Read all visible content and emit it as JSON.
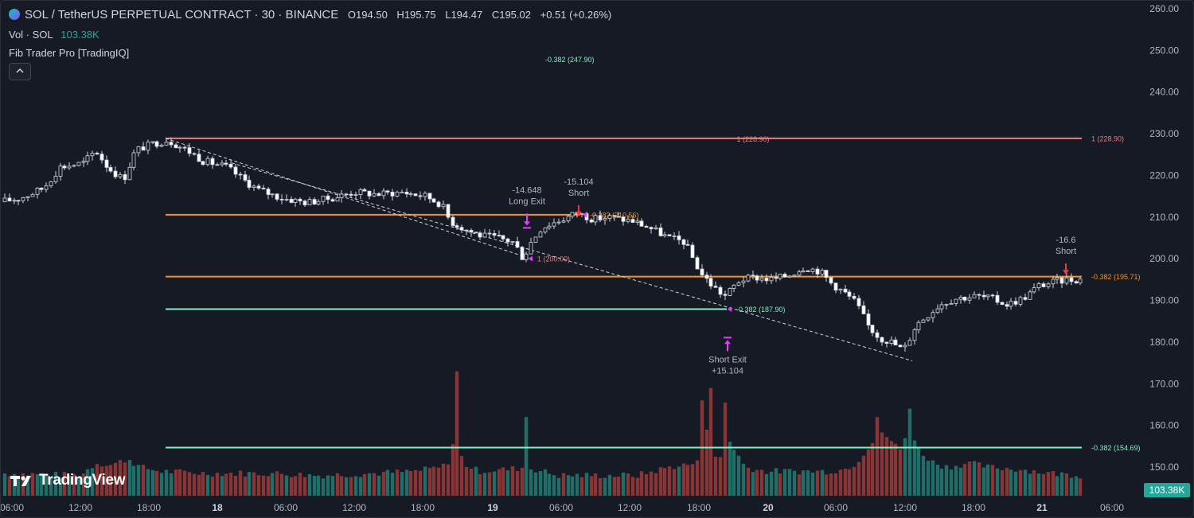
{
  "header": {
    "title": "SOL / TetherUS PERPETUAL CONTRACT · 30 · BINANCE",
    "ohlc": [
      {
        "label": "O",
        "value": "194.50"
      },
      {
        "label": "H",
        "value": "195.75"
      },
      {
        "label": "L",
        "value": "194.47"
      },
      {
        "label": "C",
        "value": "195.02"
      }
    ],
    "change": "+0.51 (+0.26%)",
    "change_color": "#d1d4dc",
    "volume_label": "Vol · SOL",
    "volume_value": "103.38K",
    "volume_color": "#26a69a",
    "indicator": "Fib Trader Pro [TradingIQ]",
    "collapse_icon": "chevron-up-icon"
  },
  "brand": {
    "name": "TradingView"
  },
  "volume_badge": "103.38K",
  "chart_data": {
    "type": "candlestick",
    "ylim": [
      144,
      261
    ],
    "y_ticks": [
      "260.00",
      "250.00",
      "240.00",
      "230.00",
      "220.00",
      "210.00",
      "200.00",
      "190.00",
      "180.00",
      "170.00",
      "160.00",
      "150.00"
    ],
    "x_ticks": [
      "06:00",
      "12:00",
      "18:00",
      "18",
      "06:00",
      "12:00",
      "18:00",
      "19",
      "06:00",
      "12:00",
      "18:00",
      "20",
      "06:00",
      "12:00",
      "18:00",
      "21",
      "06:00"
    ],
    "colors": {
      "up": "#ffffff",
      "down": "#ffffff",
      "vol_up": "#1f6f68",
      "vol_down": "#8a3535",
      "orange": "#f7931a",
      "green": "#7ef3c2",
      "red": "#f07b7b",
      "marker": "#e040fb",
      "arrow": "#f23645"
    },
    "price_path": [
      [
        0,
        213.5
      ],
      [
        30,
        214.5
      ],
      [
        60,
        217
      ],
      [
        80,
        222
      ],
      [
        110,
        223
      ],
      [
        125,
        226
      ],
      [
        140,
        222
      ],
      [
        160,
        219
      ],
      [
        175,
        226
      ],
      [
        195,
        227.5
      ],
      [
        215,
        228.5
      ],
      [
        240,
        226
      ],
      [
        260,
        223.5
      ],
      [
        290,
        222
      ],
      [
        310,
        219
      ],
      [
        330,
        216.5
      ],
      [
        360,
        214.5
      ],
      [
        390,
        213.5
      ],
      [
        420,
        214.5
      ],
      [
        450,
        216
      ],
      [
        480,
        215.5
      ],
      [
        510,
        216
      ],
      [
        540,
        215
      ],
      [
        560,
        213
      ],
      [
        570,
        209
      ],
      [
        590,
        207
      ],
      [
        610,
        205.5
      ],
      [
        630,
        205
      ],
      [
        650,
        204
      ],
      [
        662,
        200
      ],
      [
        672,
        204
      ],
      [
        685,
        207.5
      ],
      [
        705,
        209
      ],
      [
        730,
        211
      ],
      [
        750,
        209.5
      ],
      [
        770,
        210
      ],
      [
        800,
        209
      ],
      [
        820,
        207.5
      ],
      [
        845,
        205
      ],
      [
        865,
        204
      ],
      [
        885,
        196.5
      ],
      [
        900,
        193.5
      ],
      [
        915,
        191
      ],
      [
        935,
        195
      ],
      [
        955,
        195.5
      ],
      [
        975,
        195
      ],
      [
        995,
        196
      ],
      [
        1015,
        198
      ],
      [
        1035,
        197
      ],
      [
        1050,
        194
      ],
      [
        1068,
        191.5
      ],
      [
        1080,
        189.5
      ],
      [
        1095,
        184
      ],
      [
        1110,
        181
      ],
      [
        1125,
        180
      ],
      [
        1140,
        178
      ],
      [
        1155,
        184
      ],
      [
        1170,
        186.5
      ],
      [
        1185,
        189
      ],
      [
        1205,
        190.5
      ],
      [
        1230,
        191
      ],
      [
        1250,
        190.5
      ],
      [
        1270,
        189
      ],
      [
        1290,
        190.5
      ],
      [
        1310,
        193.5
      ],
      [
        1330,
        194.5
      ],
      [
        1345,
        195
      ],
      [
        1360,
        195
      ]
    ],
    "volume_path": [
      [
        0,
        148.5
      ],
      [
        100,
        148
      ],
      [
        120,
        151
      ],
      [
        140,
        150.5
      ],
      [
        160,
        152
      ],
      [
        175,
        150
      ],
      [
        200,
        149
      ],
      [
        260,
        148.5
      ],
      [
        340,
        148.5
      ],
      [
        400,
        148
      ],
      [
        470,
        148.5
      ],
      [
        520,
        149
      ],
      [
        555,
        150
      ],
      [
        565,
        152
      ],
      [
        573,
        163
      ],
      [
        580,
        151
      ],
      [
        600,
        149
      ],
      [
        640,
        149.5
      ],
      [
        660,
        150
      ],
      [
        700,
        148
      ],
      [
        760,
        148
      ],
      [
        800,
        148
      ],
      [
        820,
        149
      ],
      [
        840,
        150
      ],
      [
        860,
        150.5
      ],
      [
        875,
        151
      ],
      [
        882,
        158
      ],
      [
        890,
        161
      ],
      [
        900,
        150
      ],
      [
        912,
        157
      ],
      [
        920,
        155
      ],
      [
        935,
        150
      ],
      [
        960,
        149
      ],
      [
        1000,
        149
      ],
      [
        1040,
        149
      ],
      [
        1060,
        149.5
      ],
      [
        1075,
        151
      ],
      [
        1090,
        155
      ],
      [
        1100,
        157
      ],
      [
        1110,
        158
      ],
      [
        1120,
        156
      ],
      [
        1130,
        154
      ],
      [
        1142,
        160
      ],
      [
        1150,
        155
      ],
      [
        1160,
        153
      ],
      [
        1172,
        151
      ],
      [
        1190,
        150
      ],
      [
        1215,
        151
      ],
      [
        1240,
        150
      ],
      [
        1280,
        149.5
      ],
      [
        1320,
        148.5
      ],
      [
        1360,
        148
      ]
    ],
    "volume_highlights": [
      [
        573,
        173
      ],
      [
        662,
        162
      ],
      [
        883,
        166
      ],
      [
        891,
        169
      ],
      [
        912,
        165.5
      ],
      [
        1100,
        162
      ],
      [
        1143,
        164
      ]
    ],
    "levels": [
      {
        "label": "1 (228.90)",
        "price": 228.9,
        "x_start": 207,
        "x_end": 1358,
        "color": "#f07b7b",
        "label_at": "both"
      },
      {
        "label": "-0.382 (210.56)",
        "price": 210.56,
        "x_start": 207,
        "x_end": 728,
        "color": "#f7931a",
        "label_at": "end"
      },
      {
        "label": "-0.382 (195.71)",
        "price": 195.71,
        "x_start": 207,
        "x_end": 1358,
        "color": "#f7931a",
        "label_at": "end"
      },
      {
        "label": "-0.382 (187.90)",
        "price": 187.9,
        "x_start": 207,
        "x_end": 912,
        "color": "#7ef3c2",
        "label_at": "end"
      },
      {
        "label": "-0.382 (154.69)",
        "price": 154.69,
        "x_start": 207,
        "x_end": 1358,
        "color": "#7ef3c2",
        "label_at": "end"
      },
      {
        "label": "1 (200.00)",
        "price": 200.0,
        "x_start": 662,
        "x_end": 662,
        "color": "#f07b7b",
        "label_at": "end"
      },
      {
        "label": "-0.382 (247.90)",
        "price": 247.9,
        "x_start": 672,
        "x_end": 672,
        "color": "#7ef3c2",
        "label_at": "end"
      }
    ],
    "trendlines": [
      {
        "from": [
          207,
          228.9
        ],
        "to": [
          666,
          200
        ]
      },
      {
        "from": [
          290,
          223
        ],
        "to": [
          1145,
          175.5
        ]
      }
    ],
    "annotations": [
      {
        "kind": "long-exit",
        "lines": [
          "-14.648",
          "Long Exit"
        ],
        "x": 661,
        "price": 212,
        "dir": "down"
      },
      {
        "kind": "short",
        "lines": [
          "-15.104",
          "Short"
        ],
        "x": 726,
        "price": 214,
        "dir": "down"
      },
      {
        "kind": "short-exit",
        "lines": [
          "Short Exit",
          "+15.104"
        ],
        "x": 913,
        "price": 180.5,
        "dir": "up"
      },
      {
        "kind": "short",
        "lines": [
          "-16.6",
          "Short"
        ],
        "x": 1338,
        "price": 200,
        "dir": "down"
      }
    ]
  }
}
